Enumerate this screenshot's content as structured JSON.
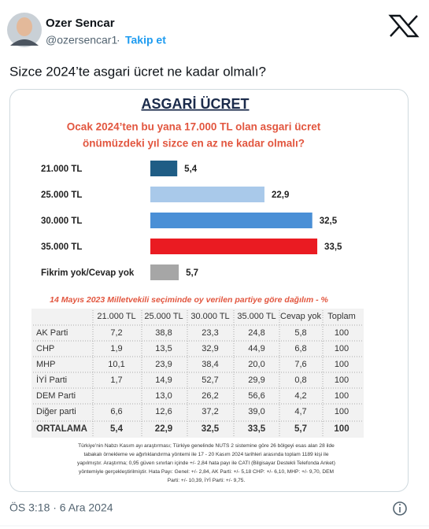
{
  "tweet": {
    "name": "Ozer Sencar",
    "handle": "@ozersencar1",
    "follow": "Takip et",
    "text": "Sizce 2024’te asgari ücret ne kadar olmalı?",
    "timestamp": "ÖS 3:18 · 6 Ara 2024"
  },
  "chart_data": {
    "type": "bar",
    "title": "ASGARİ ÜCRET",
    "subtitle": [
      "Ocak 2024’ten bu yana 17.000 TL olan asgari ücret",
      "önümüzdeki yıl sizce en az ne kadar olmalı?"
    ],
    "categories": [
      "21.000 TL",
      "25.000 TL",
      "30.000 TL",
      "35.000 TL",
      "Fikrim yok/Cevap yok"
    ],
    "values": [
      5.4,
      22.9,
      32.5,
      33.5,
      5.7
    ],
    "value_labels": [
      "5,4",
      "22,9",
      "32,5",
      "33,5",
      "5,7"
    ],
    "colors": [
      "#1f5d85",
      "#a9c9ea",
      "#4a8fd6",
      "#ea1b22",
      "#a6a6a6"
    ]
  },
  "table": {
    "caption": "14 Mayıs 2023 Milletvekili seçiminde oy verilen partiye göre dağılım - %",
    "header": [
      "21.000 TL",
      "25.000 TL",
      "30.000 TL",
      "35.000 TL",
      "Cevap yok",
      "Toplam"
    ],
    "rows": [
      [
        "AK Parti",
        "7,2",
        "38,8",
        "23,3",
        "24,8",
        "5,8",
        "100"
      ],
      [
        "CHP",
        "1,9",
        "13,5",
        "32,9",
        "44,9",
        "6,8",
        "100"
      ],
      [
        "MHP",
        "10,1",
        "23,9",
        "38,4",
        "20,0",
        "7,6",
        "100"
      ],
      [
        "İYİ Parti",
        "1,7",
        "14,9",
        "52,7",
        "29,9",
        "0,8",
        "100"
      ],
      [
        "DEM Parti",
        null,
        "13,0",
        "26,2",
        "56,6",
        "4,2",
        "100"
      ],
      [
        "Diğer parti",
        "6,6",
        "12,6",
        "37,2",
        "39,0",
        "4,7",
        "100"
      ],
      [
        "ORTALAMA",
        "5,4",
        "22,9",
        "32,5",
        "33,5",
        "5,7",
        "100"
      ]
    ]
  },
  "methodology": [
    "Türkiye’nin Nabzı Kasım ayı araştırması; Türkiye genelinde NUTS 2 sistemine göre 26 bölgeyi esas alan 28 ilde",
    "tabakalı örnekleme ve ağırlıklandırma yöntemi ile 17 - 20 Kasım 2024 tarihleri arasında toplam 1189 kişi ile",
    "yapılmıştır. Araştırma; 0,95 güven sınırları içinde +/- 2,84 hata payı ile CATI (Bilgisayar Destekli Telefonda Anket)",
    "yöntemiyle gerçekleştirilmiştir. Hata Payı: Genel: +/- 2,84, AK Parti: +/- 5,18 CHP: +/- 6,10, MHP: +/- 9,70, DEM",
    "Parti: +/- 10,39, İYİ Parti: +/- 9,75."
  ]
}
